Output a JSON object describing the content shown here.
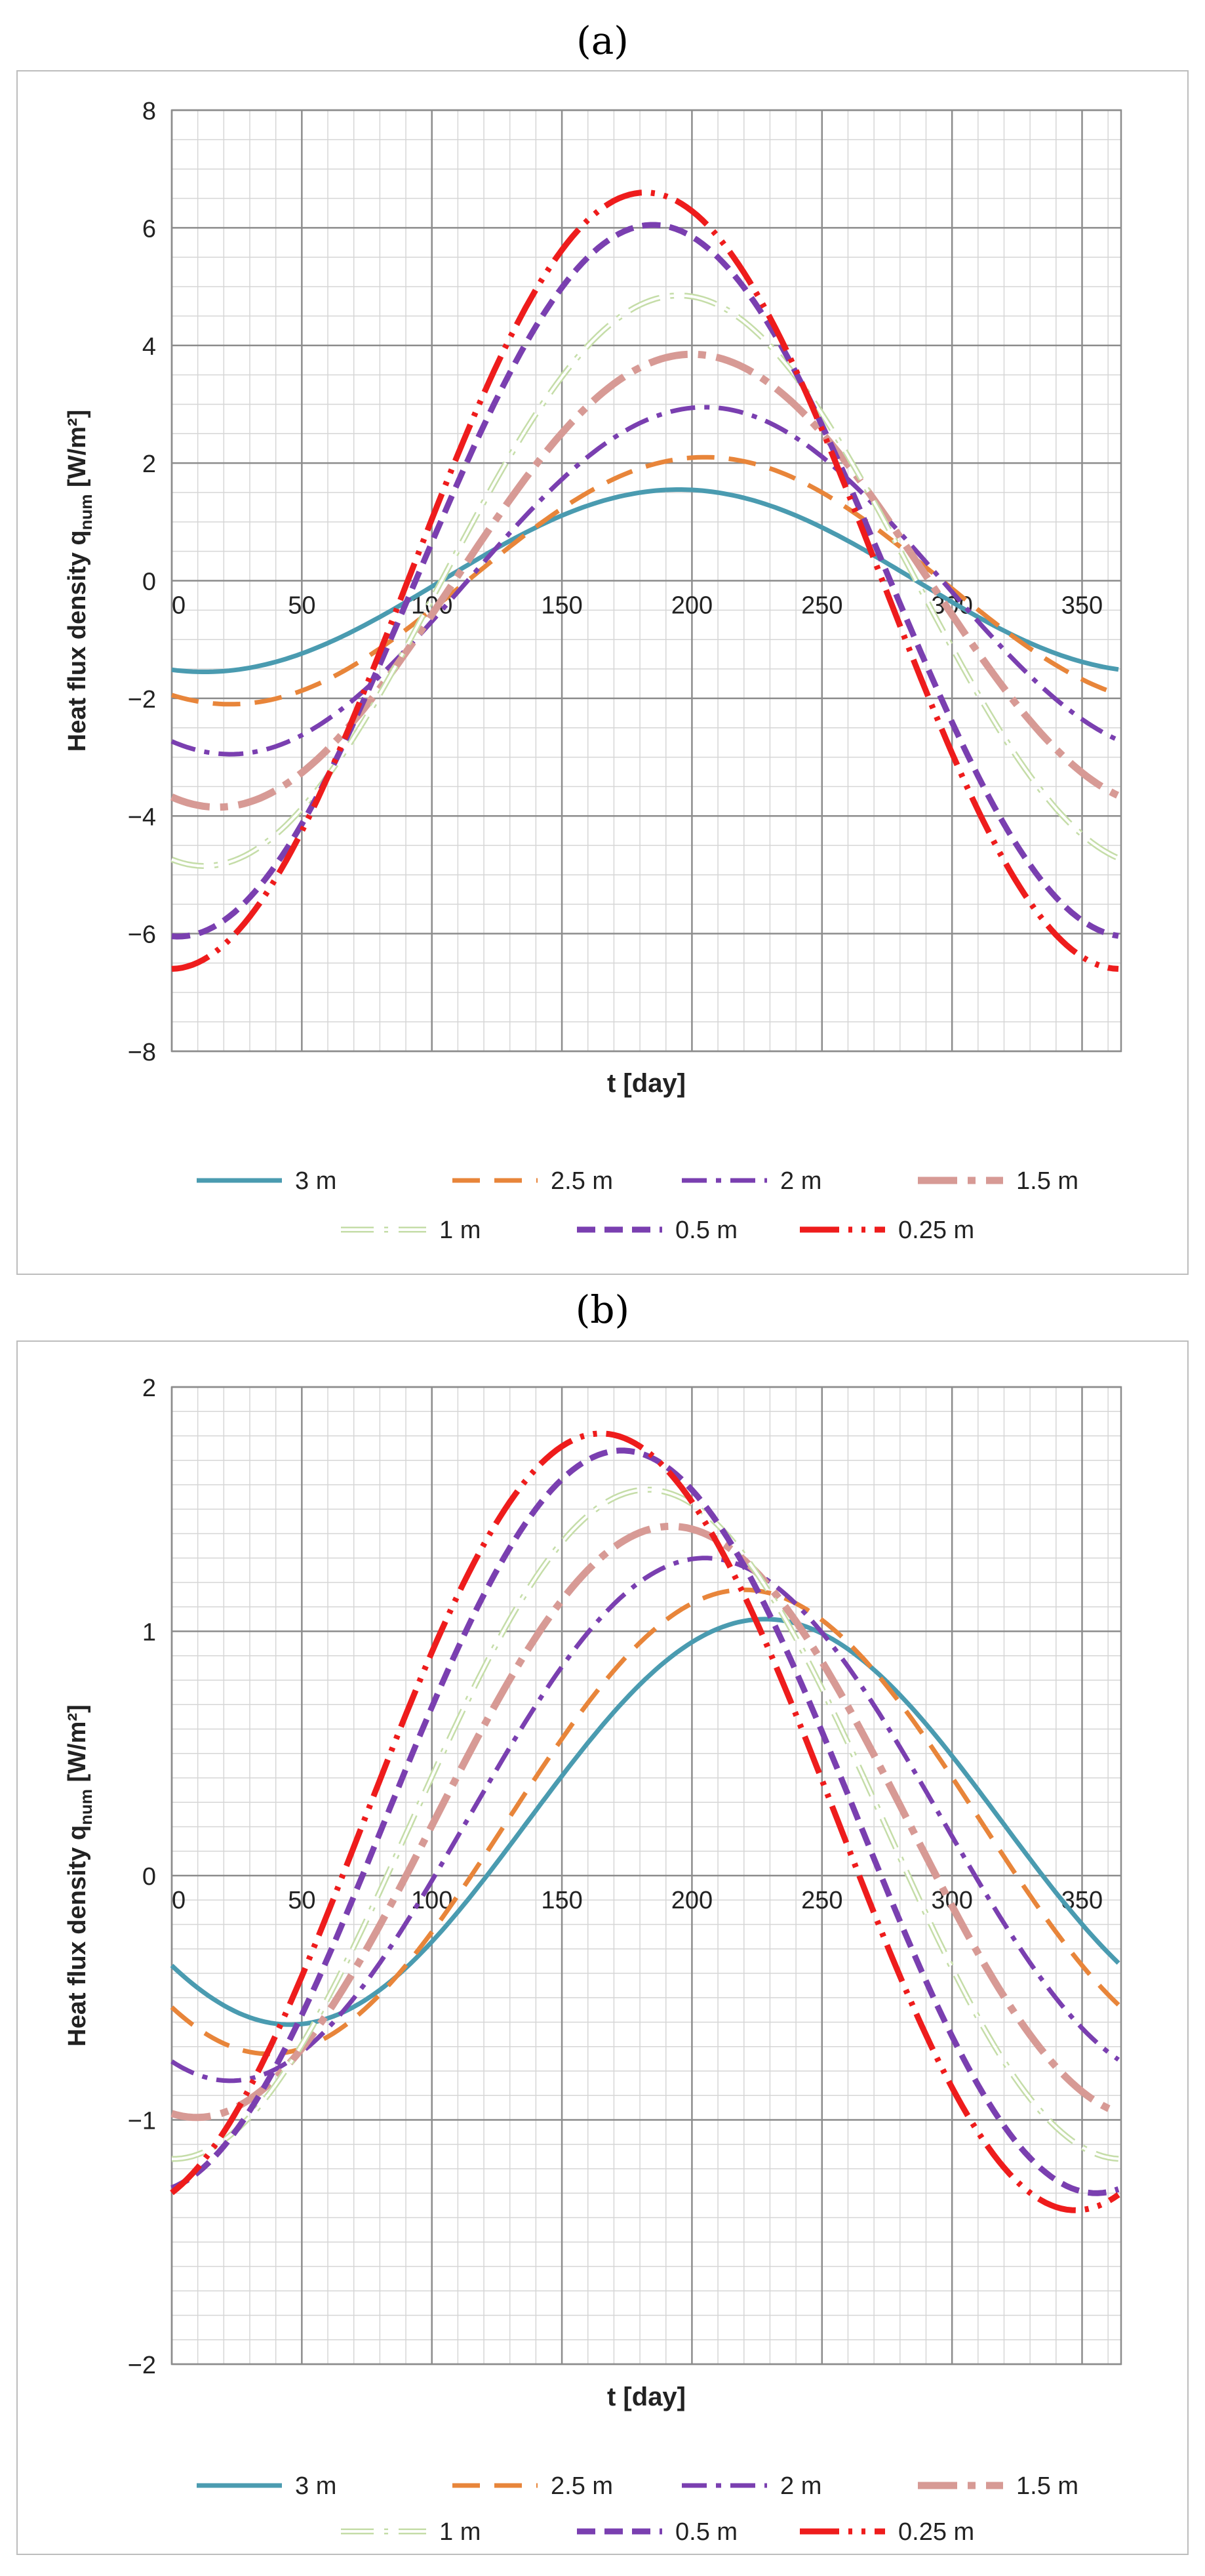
{
  "colors": {
    "3 m": "#4a9bb0",
    "2.5 m": "#e8853a",
    "2 m": "#7a3fb0",
    "1.5 m": "#d79a95",
    "1 m": "#c5dda8",
    "0.5 m": "#7a3fb0",
    "0.25 m": "#ee1c1c"
  },
  "chart_data": [
    {
      "panel_label": "(a)",
      "type": "line",
      "title": "",
      "xlabel": "t [day]",
      "ylabel": "Heat flux density q",
      "ylabel_sub": "num",
      "ylabel_unit": "[W/m²]",
      "xlim": [
        0,
        365
      ],
      "ylim": [
        -8,
        8
      ],
      "xticks": [
        0,
        50,
        100,
        150,
        200,
        250,
        300,
        350
      ],
      "yticks": [
        -8,
        -6,
        -4,
        -2,
        0,
        2,
        4,
        6,
        8
      ],
      "ytick_labels": [
        "−8",
        "−6",
        "−4",
        "−2",
        "0",
        "2",
        "4",
        "6",
        "8"
      ],
      "xtick_labels": [
        "0",
        "50",
        "100",
        "150",
        "200",
        "250",
        "300",
        "350"
      ],
      "grid": true,
      "legend": "bottom",
      "series": [
        {
          "name": "3 m",
          "amplitude": 1.55,
          "peak_day": 195
        },
        {
          "name": "2.5 m",
          "amplitude": 2.1,
          "peak_day": 205
        },
        {
          "name": "2 m",
          "amplitude": 2.95,
          "peak_day": 205
        },
        {
          "name": "1.5 m",
          "amplitude": 3.85,
          "peak_day": 200
        },
        {
          "name": "1 m",
          "amplitude": 4.85,
          "peak_day": 195
        },
        {
          "name": "0.5 m",
          "amplitude": 6.05,
          "peak_day": 185
        },
        {
          "name": "0.25 m",
          "amplitude": 6.6,
          "peak_day": 182
        }
      ]
    },
    {
      "panel_label": "(b)",
      "type": "line",
      "title": "",
      "xlabel": "t [day]",
      "ylabel": "Heat flux density q",
      "ylabel_sub": "num",
      "ylabel_unit": "[W/m²]",
      "xlim": [
        0,
        365
      ],
      "ylim": [
        -2,
        2
      ],
      "xticks": [
        0,
        50,
        100,
        150,
        200,
        250,
        300,
        350
      ],
      "yticks": [
        -2,
        -1,
        0,
        1,
        2
      ],
      "ytick_labels": [
        "−2",
        "−1",
        "0",
        "1",
        "2"
      ],
      "xtick_labels": [
        "0",
        "50",
        "100",
        "150",
        "200",
        "250",
        "300",
        "350"
      ],
      "grid": true,
      "legend": "bottom",
      "series": [
        {
          "name": "3 m",
          "offset": 0.22,
          "amplitude": 0.83,
          "peak_day": 228
        },
        {
          "name": "2.5 m",
          "offset": 0.22,
          "amplitude": 0.95,
          "peak_day": 220
        },
        {
          "name": "2 m",
          "offset": 0.23,
          "amplitude": 1.07,
          "peak_day": 205
        },
        {
          "name": "1.5 m",
          "offset": 0.22,
          "amplitude": 1.21,
          "peak_day": 192
        },
        {
          "name": "1 m",
          "offset": 0.21,
          "amplitude": 1.37,
          "peak_day": 183
        },
        {
          "name": "0.5 m",
          "offset": 0.22,
          "amplitude": 1.52,
          "peak_day": 173
        },
        {
          "name": "0.25 m",
          "offset": 0.22,
          "amplitude": 1.59,
          "peak_day": 165
        }
      ]
    }
  ]
}
